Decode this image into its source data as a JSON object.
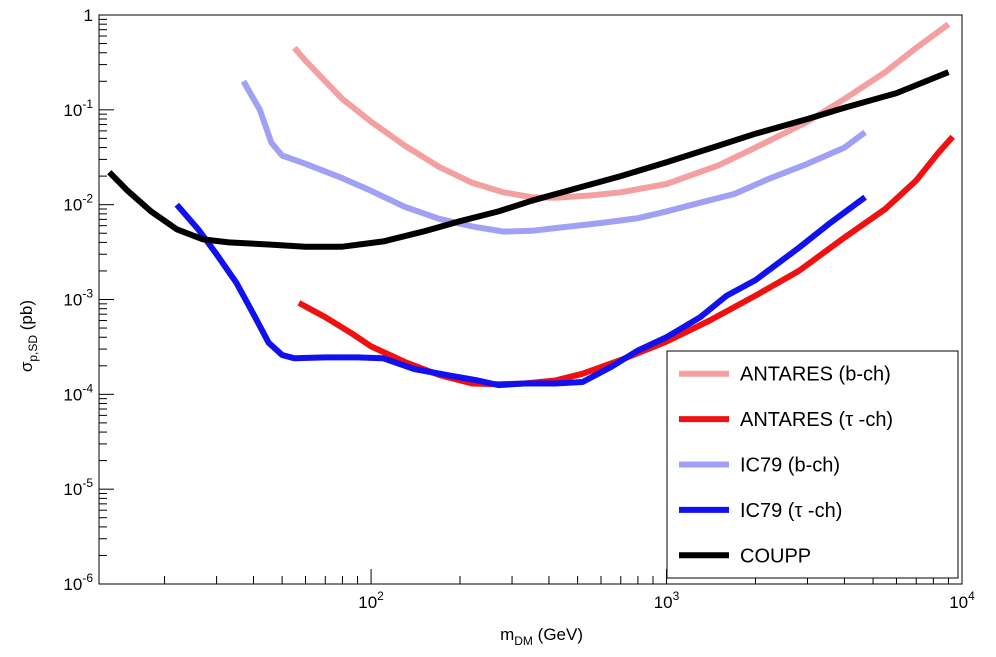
{
  "chart_data": {
    "type": "line",
    "title": "",
    "xlabel": {
      "main": "m",
      "sub": "DM",
      "rest": " (GeV)"
    },
    "ylabel": {
      "main": "σ",
      "sub": "p,SD",
      "rest": " (pb)"
    },
    "xscale": "log",
    "yscale": "log",
    "xlim": [
      12,
      10000
    ],
    "ylim": [
      1e-06,
      1
    ],
    "x_ticks": [
      {
        "value": 100,
        "base": "10",
        "exp": "2"
      },
      {
        "value": 1000,
        "base": "10",
        "exp": "3"
      },
      {
        "value": 10000,
        "base": "10",
        "exp": "4"
      }
    ],
    "y_ticks": [
      {
        "value": 1,
        "base": "1",
        "exp": ""
      },
      {
        "value": 0.1,
        "base": "10",
        "exp": "-1"
      },
      {
        "value": 0.01,
        "base": "10",
        "exp": "-2"
      },
      {
        "value": 0.001,
        "base": "10",
        "exp": "-3"
      },
      {
        "value": 0.0001,
        "base": "10",
        "exp": "-4"
      },
      {
        "value": 1e-05,
        "base": "10",
        "exp": "-5"
      },
      {
        "value": 1e-06,
        "base": "10",
        "exp": "-6"
      }
    ],
    "grid": false,
    "legend_position": "bottom-right",
    "series": [
      {
        "name": "ANTARES (b-ch)",
        "color": "#f4a0a0",
        "points": [
          [
            55,
            0.45
          ],
          [
            60,
            0.33
          ],
          [
            70,
            0.2
          ],
          [
            80,
            0.13
          ],
          [
            100,
            0.075
          ],
          [
            130,
            0.042
          ],
          [
            170,
            0.025
          ],
          [
            220,
            0.017
          ],
          [
            280,
            0.0135
          ],
          [
            350,
            0.012
          ],
          [
            420,
            0.0118
          ],
          [
            550,
            0.0125
          ],
          [
            700,
            0.0135
          ],
          [
            1000,
            0.0165
          ],
          [
            1500,
            0.026
          ],
          [
            2000,
            0.04
          ],
          [
            3000,
            0.075
          ],
          [
            4000,
            0.13
          ],
          [
            5500,
            0.25
          ],
          [
            7000,
            0.45
          ],
          [
            9000,
            0.8
          ]
        ]
      },
      {
        "name": "ANTARES (τ -ch)",
        "color": "#f01010",
        "points": [
          [
            57,
            0.00092
          ],
          [
            70,
            0.00065
          ],
          [
            85,
            0.00045
          ],
          [
            100,
            0.00032
          ],
          [
            130,
            0.00022
          ],
          [
            170,
            0.00016
          ],
          [
            220,
            0.00013
          ],
          [
            270,
            0.000128
          ],
          [
            330,
            0.00013
          ],
          [
            420,
            0.00014
          ],
          [
            520,
            0.000165
          ],
          [
            700,
            0.00023
          ],
          [
            1000,
            0.00036
          ],
          [
            1400,
            0.0006
          ],
          [
            2000,
            0.0011
          ],
          [
            2800,
            0.002
          ],
          [
            4000,
            0.0045
          ],
          [
            5500,
            0.009
          ],
          [
            7000,
            0.018
          ],
          [
            8300,
            0.035
          ],
          [
            9300,
            0.052
          ]
        ]
      },
      {
        "name": "IC79 (b-ch)",
        "color": "#a0a0f4",
        "points": [
          [
            37,
            0.2
          ],
          [
            42,
            0.1
          ],
          [
            46,
            0.045
          ],
          [
            50,
            0.033
          ],
          [
            60,
            0.027
          ],
          [
            80,
            0.019
          ],
          [
            100,
            0.014
          ],
          [
            130,
            0.0095
          ],
          [
            170,
            0.0071
          ],
          [
            220,
            0.0059
          ],
          [
            280,
            0.0052
          ],
          [
            350,
            0.0053
          ],
          [
            450,
            0.0058
          ],
          [
            600,
            0.0064
          ],
          [
            800,
            0.0072
          ],
          [
            1000,
            0.0085
          ],
          [
            1300,
            0.0105
          ],
          [
            1700,
            0.013
          ],
          [
            2200,
            0.0185
          ],
          [
            3000,
            0.027
          ],
          [
            4000,
            0.04
          ],
          [
            4700,
            0.058
          ]
        ]
      },
      {
        "name": "IC79 (τ -ch)",
        "color": "#1010f0",
        "points": [
          [
            22,
            0.01
          ],
          [
            26,
            0.0055
          ],
          [
            30,
            0.003
          ],
          [
            35,
            0.0015
          ],
          [
            40,
            0.0007
          ],
          [
            45,
            0.00035
          ],
          [
            50,
            0.00026
          ],
          [
            55,
            0.00024
          ],
          [
            70,
            0.000245
          ],
          [
            90,
            0.000245
          ],
          [
            110,
            0.00024
          ],
          [
            140,
            0.000185
          ],
          [
            180,
            0.00016
          ],
          [
            230,
            0.00014
          ],
          [
            270,
            0.000125
          ],
          [
            330,
            0.00013
          ],
          [
            420,
            0.00013
          ],
          [
            520,
            0.000135
          ],
          [
            650,
            0.000195
          ],
          [
            800,
            0.00029
          ],
          [
            1000,
            0.0004
          ],
          [
            1300,
            0.00065
          ],
          [
            1600,
            0.0011
          ],
          [
            2000,
            0.0016
          ],
          [
            2800,
            0.0035
          ],
          [
            3600,
            0.0065
          ],
          [
            4700,
            0.012
          ]
        ]
      },
      {
        "name": "COUPP",
        "color": "#000000",
        "points": [
          [
            13,
            0.022
          ],
          [
            15,
            0.014
          ],
          [
            18,
            0.0085
          ],
          [
            22,
            0.0055
          ],
          [
            27,
            0.0043
          ],
          [
            33,
            0.004
          ],
          [
            45,
            0.0038
          ],
          [
            60,
            0.0036
          ],
          [
            80,
            0.0036
          ],
          [
            110,
            0.0041
          ],
          [
            150,
            0.0052
          ],
          [
            200,
            0.0067
          ],
          [
            270,
            0.0085
          ],
          [
            350,
            0.011
          ],
          [
            500,
            0.015
          ],
          [
            700,
            0.02
          ],
          [
            1000,
            0.028
          ],
          [
            1500,
            0.042
          ],
          [
            2000,
            0.056
          ],
          [
            3000,
            0.08
          ],
          [
            4000,
            0.105
          ],
          [
            6000,
            0.15
          ],
          [
            9000,
            0.25
          ]
        ]
      }
    ]
  }
}
